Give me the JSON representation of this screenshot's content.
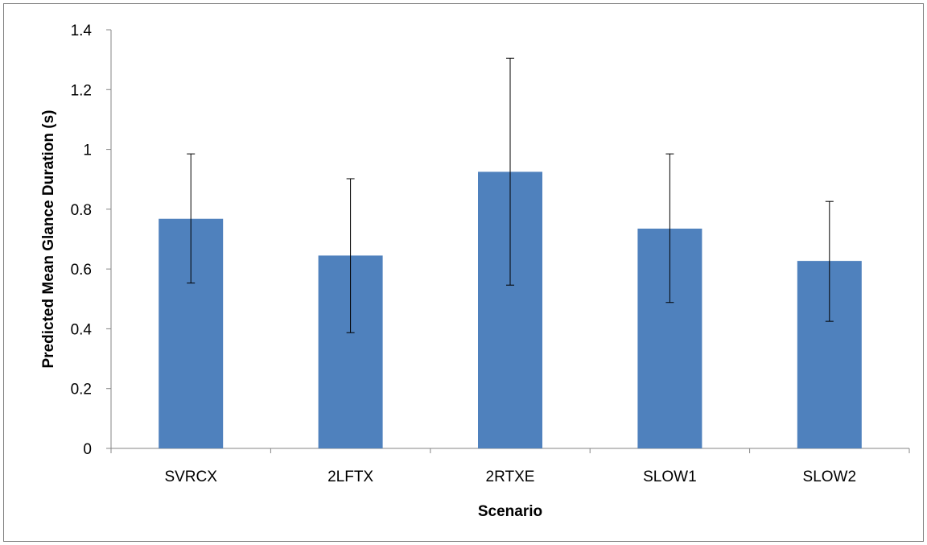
{
  "chart_data": {
    "type": "bar",
    "title": "",
    "xlabel": "Scenario",
    "ylabel": "Predicted Mean Glance Duration  (s)",
    "categories": [
      "SVRCX",
      "2LFTX",
      "2RTXE",
      "SLOW1",
      "SLOW2"
    ],
    "values": [
      0.768,
      0.645,
      0.925,
      0.735,
      0.627
    ],
    "error_low": [
      0.553,
      0.387,
      0.546,
      0.488,
      0.425
    ],
    "error_high": [
      0.985,
      0.902,
      1.305,
      0.985,
      0.826
    ],
    "ylim": [
      0,
      1.4
    ],
    "yticks": [
      0,
      0.2,
      0.4,
      0.6,
      0.8,
      1,
      1.2,
      1.4
    ],
    "ytick_labels": [
      "0",
      "0.2",
      "0.4",
      "0.6",
      "0.8",
      "1",
      "1.2",
      "1.4"
    ],
    "grid": false,
    "legend": "none",
    "bar_color": "#4f81bd"
  }
}
